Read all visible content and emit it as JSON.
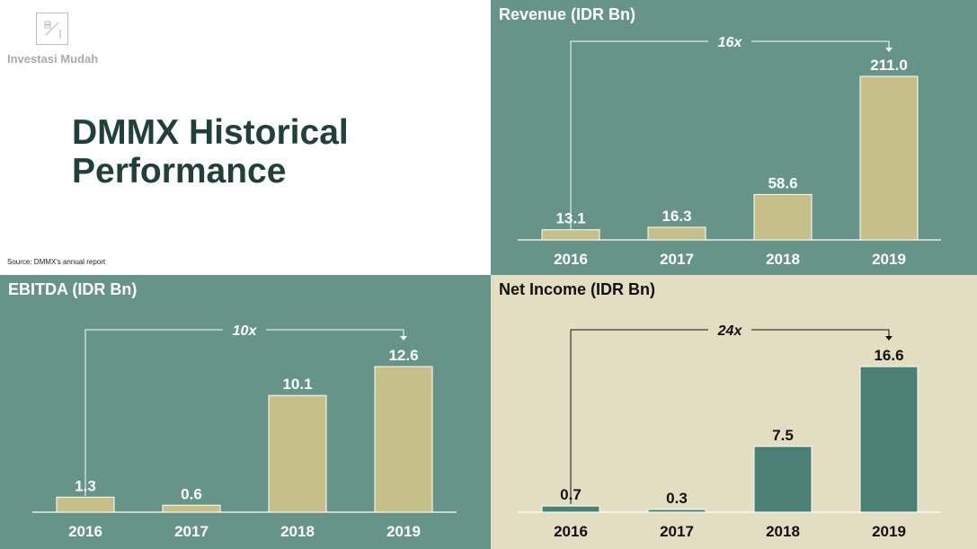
{
  "brand": {
    "name": "Investasi Mudah"
  },
  "page": {
    "title_line1": "DMMX Historical",
    "title_line2": "Performance",
    "source": "Source: DMMX's annual report"
  },
  "colors": {
    "teal_bg": "#669488",
    "cream_bg": "#e3dec2",
    "khaki_bar": "#c6bf88",
    "teal_bar": "#4a8174",
    "dark_text": "#20413a"
  },
  "chart_data": [
    {
      "id": "revenue",
      "type": "bar",
      "title": "Revenue (IDR Bn)",
      "categories": [
        "2016",
        "2017",
        "2018",
        "2019"
      ],
      "values": [
        13.1,
        16.3,
        58.6,
        211.0
      ],
      "value_labels": [
        "13.1",
        "16.3",
        "58.6",
        "211.0"
      ],
      "annotation": "16x",
      "ylim": [
        0,
        240
      ],
      "grid": false
    },
    {
      "id": "ebitda",
      "type": "bar",
      "title": "EBITDA (IDR Bn)",
      "categories": [
        "2016",
        "2017",
        "2018",
        "2019"
      ],
      "values": [
        1.3,
        0.6,
        10.1,
        12.6
      ],
      "value_labels": [
        "1.3",
        "0.6",
        "10.1",
        "12.6"
      ],
      "annotation": "10x",
      "ylim": [
        0,
        14
      ],
      "grid": false
    },
    {
      "id": "net-income",
      "type": "bar",
      "title": "Net Income (IDR Bn)",
      "categories": [
        "2016",
        "2017",
        "2018",
        "2019"
      ],
      "values": [
        0.7,
        0.3,
        7.5,
        16.6
      ],
      "value_labels": [
        "0.7",
        "0.3",
        "7.5",
        "16.6"
      ],
      "annotation": "24x",
      "ylim": [
        0,
        20
      ],
      "grid": false
    }
  ]
}
